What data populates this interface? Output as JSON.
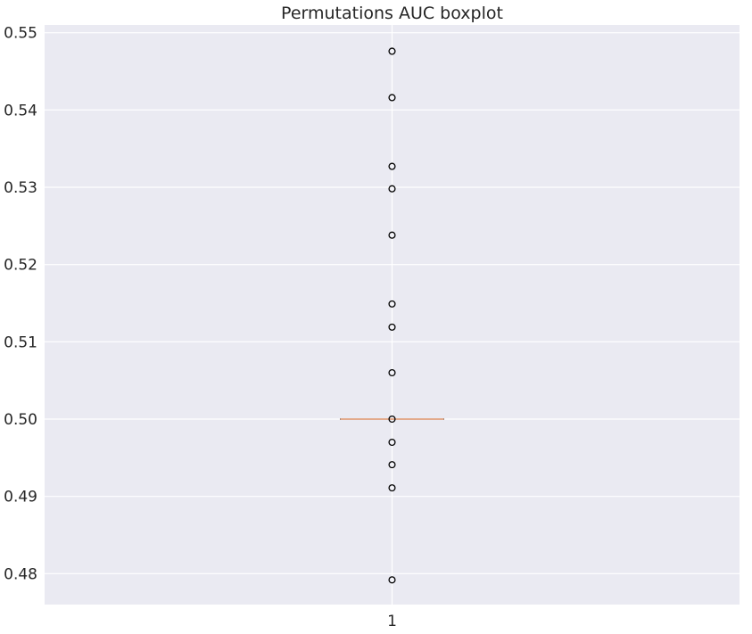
{
  "chart_data": {
    "type": "boxplot",
    "title": "Permutations AUC boxplot",
    "xlabel": "",
    "ylabel": "",
    "categories": [
      "1"
    ],
    "ylim": [
      0.476,
      0.551
    ],
    "yticks": [
      0.48,
      0.49,
      0.5,
      0.51,
      0.52,
      0.53,
      0.54,
      0.55
    ],
    "ytick_labels": [
      "0.48",
      "0.49",
      "0.50",
      "0.51",
      "0.52",
      "0.53",
      "0.54",
      "0.55"
    ],
    "grid": true,
    "box": {
      "q1": 0.5,
      "median": 0.5,
      "q3": 0.5,
      "whisker_low": 0.5,
      "whisker_high": 0.5
    },
    "outliers": [
      0.5476,
      0.5416,
      0.5327,
      0.5298,
      0.5238,
      0.5149,
      0.5119,
      0.506,
      0.5,
      0.497,
      0.4941,
      0.4911,
      0.4792
    ],
    "colors": {
      "background": "#eaeaf2",
      "grid": "#ffffff",
      "median": "#dd8452",
      "outlier_edge": "#000000",
      "text": "#262626"
    }
  }
}
